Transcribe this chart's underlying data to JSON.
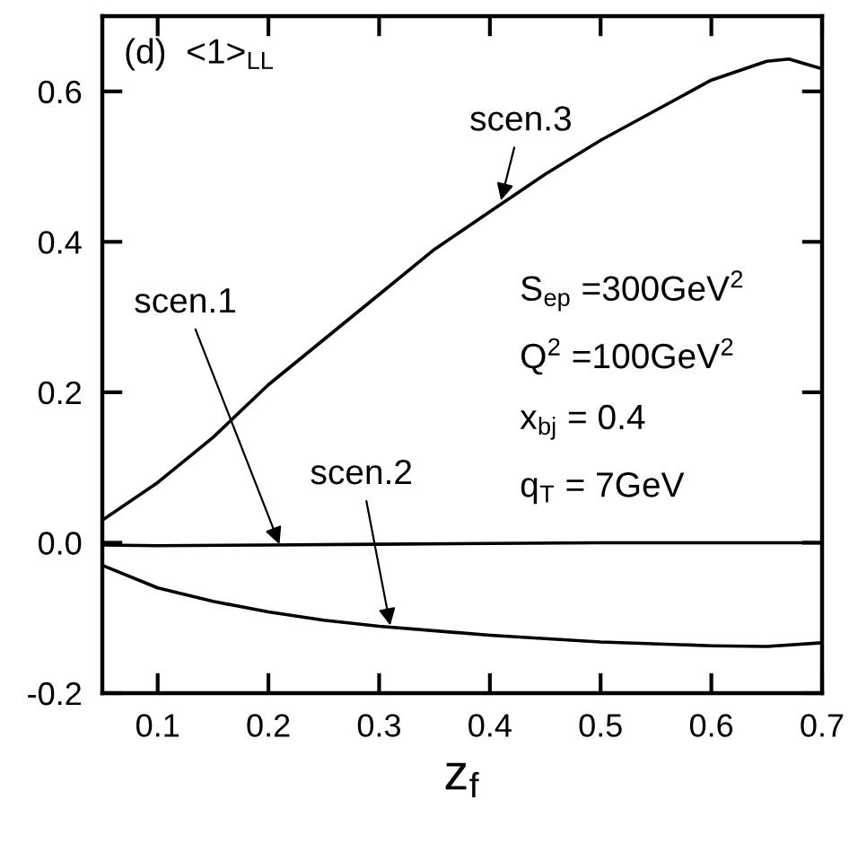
{
  "chart_data": {
    "type": "line",
    "xlabel": "z$_{f}$",
    "xlim": [
      0.05,
      0.7
    ],
    "ylim": [
      -0.2,
      0.7
    ],
    "xticks": [
      0.1,
      0.2,
      0.3,
      0.4,
      0.5,
      0.6,
      0.7
    ],
    "yticks": [
      -0.2,
      {
        "value": 0,
        "label": "0.0"
      },
      0.2,
      0.4,
      0.6
    ],
    "grid": false,
    "legend": false,
    "marker": "none",
    "line_style": "solid",
    "series": [
      {
        "color": "#000000",
        "x": [
          0.05,
          0.1,
          0.15,
          0.2,
          0.25,
          0.3,
          0.35,
          0.4,
          0.45,
          0.5,
          0.55,
          0.6,
          0.65,
          0.67,
          0.7
        ],
        "values": [
          0.03,
          0.08,
          0.14,
          0.21,
          0.27,
          0.33,
          0.39,
          0.44,
          0.49,
          0.535,
          0.575,
          0.615,
          0.64,
          0.643,
          0.63
        ]
      },
      {
        "color": "#000000",
        "x": [
          0.05,
          0.1,
          0.2,
          0.3,
          0.4,
          0.5,
          0.6,
          0.7
        ],
        "values": [
          -0.003,
          -0.004,
          -0.003,
          -0.002,
          -0.001,
          0.0,
          0.0,
          0.0
        ]
      },
      {
        "color": "#000000",
        "x": [
          0.05,
          0.1,
          0.15,
          0.2,
          0.25,
          0.3,
          0.4,
          0.5,
          0.6,
          0.65,
          0.7
        ],
        "values": [
          -0.03,
          -0.06,
          -0.078,
          -0.092,
          -0.103,
          -0.111,
          -0.123,
          -0.132,
          -0.137,
          -0.138,
          -0.133
        ]
      }
    ],
    "annotations": [
      "(d)  <1>$_{LL}$",
      {
        "text": "scen.3",
        "x": 0.41,
        "y": 0.455
      },
      {
        "text": "scen.1",
        "x": 0.21,
        "y": -0.002
      },
      {
        "text": "scen.2",
        "x": 0.31,
        "y": -0.11
      },
      "S$_{ep}$ =300GeV$^{2}$",
      "Q$^{2}$ =100GeV$^{2}$",
      "x$_{bj}$ = 0.4",
      "q$_{T}$ = 7GeV"
    ]
  }
}
